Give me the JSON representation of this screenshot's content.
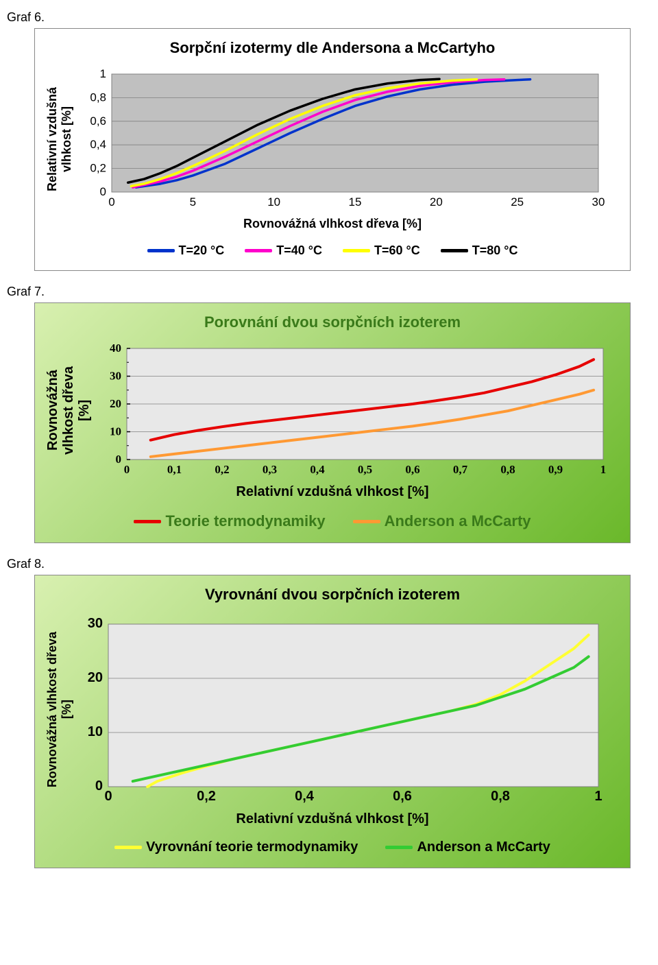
{
  "graf6": {
    "label": "Graf 6.",
    "title": "Sorpční izotermy dle Andersona a McCartyho",
    "ylabel": "Relativní vzdušná\nvlhkost [%]",
    "xlabel": "Rovnovážná vlhkost dřeva [%]",
    "background": "#ffffff",
    "plot_bg": "#c0c0c0",
    "grid_color": "#808080",
    "axis_color": "#808080",
    "xlim": [
      0,
      30
    ],
    "xtick_step": 5,
    "ylim": [
      0,
      1
    ],
    "ytick_step": 0.2,
    "ytick_labels": [
      "0",
      "0,2",
      "0,4",
      "0,6",
      "0,8",
      "1"
    ],
    "xtick_labels": [
      "0",
      "5",
      "10",
      "15",
      "20",
      "25",
      "30"
    ],
    "line_width": 3.5,
    "series": [
      {
        "name": "T=20 °C",
        "color": "#0033cc",
        "x": [
          1.5,
          2,
          3,
          4,
          5,
          7,
          9,
          11,
          13,
          15,
          17,
          19,
          21,
          23,
          25,
          25.8
        ],
        "y": [
          0.04,
          0.05,
          0.07,
          0.1,
          0.14,
          0.24,
          0.37,
          0.5,
          0.62,
          0.73,
          0.81,
          0.87,
          0.91,
          0.935,
          0.95,
          0.955
        ]
      },
      {
        "name": "T=40 °C",
        "color": "#ff00cc",
        "x": [
          1.3,
          2,
          3,
          4,
          5,
          7,
          9,
          11,
          13,
          15,
          17,
          19,
          21,
          23,
          24.2
        ],
        "y": [
          0.04,
          0.06,
          0.09,
          0.13,
          0.18,
          0.3,
          0.43,
          0.56,
          0.68,
          0.78,
          0.85,
          0.9,
          0.93,
          0.95,
          0.955
        ]
      },
      {
        "name": "T=60 °C",
        "color": "#ffff00",
        "x": [
          1.2,
          2,
          3,
          4,
          5,
          7,
          9,
          11,
          13,
          15,
          17,
          19,
          21,
          22.5
        ],
        "y": [
          0.05,
          0.07,
          0.11,
          0.16,
          0.22,
          0.35,
          0.49,
          0.62,
          0.73,
          0.82,
          0.88,
          0.92,
          0.945,
          0.955
        ]
      },
      {
        "name": "T=80 °C",
        "color": "#000000",
        "x": [
          1.0,
          2,
          3,
          4,
          5,
          7,
          9,
          11,
          13,
          15,
          17,
          19,
          20.2
        ],
        "y": [
          0.08,
          0.11,
          0.16,
          0.22,
          0.29,
          0.43,
          0.57,
          0.69,
          0.79,
          0.87,
          0.92,
          0.95,
          0.958
        ]
      }
    ]
  },
  "graf7": {
    "label": "Graf 7.",
    "title": "Porovnání dvou sorpčních izoterem",
    "ylabel": "Rovnovážná\nvlhkost dřeva\n[%]",
    "xlabel": "Relativní vzdušná vlhkost [%]",
    "plot_bg": "#e8e8e8",
    "grid_color": "#808080",
    "xlim": [
      0,
      1
    ],
    "xtick_step": 0.1,
    "ylim": [
      0,
      40
    ],
    "ytick_step": 10,
    "ytick_labels": [
      "0",
      "10",
      "20",
      "30",
      "40"
    ],
    "xtick_labels": [
      "0",
      "0,1",
      "0,2",
      "0,3",
      "0,4",
      "0,5",
      "0,6",
      "0,7",
      "0,8",
      "0,9",
      "1"
    ],
    "line_width": 4,
    "series": [
      {
        "name": "Teorie termodynamiky",
        "color": "#e60000",
        "x": [
          0.05,
          0.1,
          0.15,
          0.2,
          0.25,
          0.3,
          0.35,
          0.4,
          0.45,
          0.5,
          0.55,
          0.6,
          0.65,
          0.7,
          0.75,
          0.8,
          0.85,
          0.9,
          0.95,
          0.98
        ],
        "y": [
          7,
          9,
          10.5,
          11.8,
          13,
          14,
          15,
          16,
          17,
          18,
          19,
          20,
          21.2,
          22.5,
          24,
          26,
          28,
          30.5,
          33.5,
          36
        ]
      },
      {
        "name": "Anderson a McCarty",
        "color": "#ff9933",
        "x": [
          0.05,
          0.1,
          0.15,
          0.2,
          0.25,
          0.3,
          0.35,
          0.4,
          0.45,
          0.5,
          0.55,
          0.6,
          0.65,
          0.7,
          0.75,
          0.8,
          0.85,
          0.9,
          0.95,
          0.98
        ],
        "y": [
          1,
          2,
          3,
          4,
          5,
          6,
          7,
          8,
          9,
          10,
          11,
          12,
          13.2,
          14.5,
          16,
          17.5,
          19.5,
          21.5,
          23.5,
          25
        ]
      }
    ]
  },
  "graf8": {
    "label": "Graf 8.",
    "title": "Vyrovnání dvou sorpčních izoterem",
    "ylabel": "Rovnovážná vlhkost dřeva\n[%]",
    "xlabel": "Relativní vzdušná vlhkost [%]",
    "plot_bg": "#e8e8e8",
    "grid_color": "#808080",
    "xlim": [
      0,
      1
    ],
    "xtick_step": 0.2,
    "ylim": [
      0,
      30
    ],
    "ytick_step": 10,
    "ytick_labels": [
      "0",
      "10",
      "20",
      "30"
    ],
    "xtick_labels": [
      "0",
      "0,2",
      "0,4",
      "0,6",
      "0,8",
      "1"
    ],
    "line_width": 4,
    "series": [
      {
        "name": "Vyrovnání teorie termodynamiky",
        "color": "#ffff33",
        "x": [
          0.08,
          0.1,
          0.15,
          0.2,
          0.25,
          0.3,
          0.35,
          0.4,
          0.45,
          0.5,
          0.55,
          0.6,
          0.65,
          0.7,
          0.75,
          0.8,
          0.85,
          0.9,
          0.95,
          0.98
        ],
        "y": [
          0,
          1,
          2.5,
          3.8,
          5,
          6,
          7,
          8,
          9,
          10,
          11,
          12,
          13,
          14,
          15.2,
          17,
          19.5,
          22.5,
          25.5,
          28
        ]
      },
      {
        "name": "Anderson a McCarty",
        "color": "#33cc33",
        "x": [
          0.05,
          0.1,
          0.15,
          0.2,
          0.25,
          0.3,
          0.35,
          0.4,
          0.45,
          0.5,
          0.55,
          0.6,
          0.65,
          0.7,
          0.75,
          0.8,
          0.85,
          0.9,
          0.95,
          0.98
        ],
        "y": [
          1,
          2,
          3,
          4,
          5,
          6,
          7,
          8,
          9,
          10,
          11,
          12,
          13,
          14,
          15,
          16.5,
          18,
          20,
          22,
          24
        ]
      }
    ]
  }
}
